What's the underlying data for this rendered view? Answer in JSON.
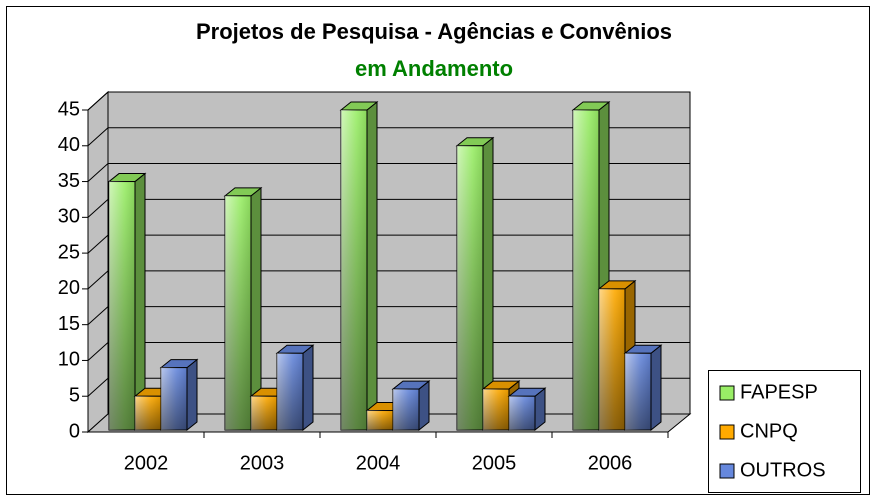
{
  "chart_data": {
    "type": "bar3d",
    "title": "Projetos de Pesquisa - Agências e Convênios",
    "subtitle": "em Andamento",
    "categories": [
      "2002",
      "2003",
      "2004",
      "2005",
      "2006"
    ],
    "series": [
      {
        "name": "FAPESP",
        "color": "#99ee66",
        "values": [
          35,
          33,
          45,
          40,
          45
        ]
      },
      {
        "name": "CNPQ",
        "color": "#ffaa00",
        "values": [
          5,
          5,
          3,
          6,
          20
        ]
      },
      {
        "name": "OUTROS",
        "color": "#6688dd",
        "values": [
          9,
          11,
          6,
          5,
          11
        ]
      }
    ],
    "ylim": [
      0,
      45
    ],
    "yticks": [
      0,
      5,
      10,
      15,
      20,
      25,
      30,
      35,
      40,
      45
    ],
    "grid": true,
    "legend": "right"
  }
}
